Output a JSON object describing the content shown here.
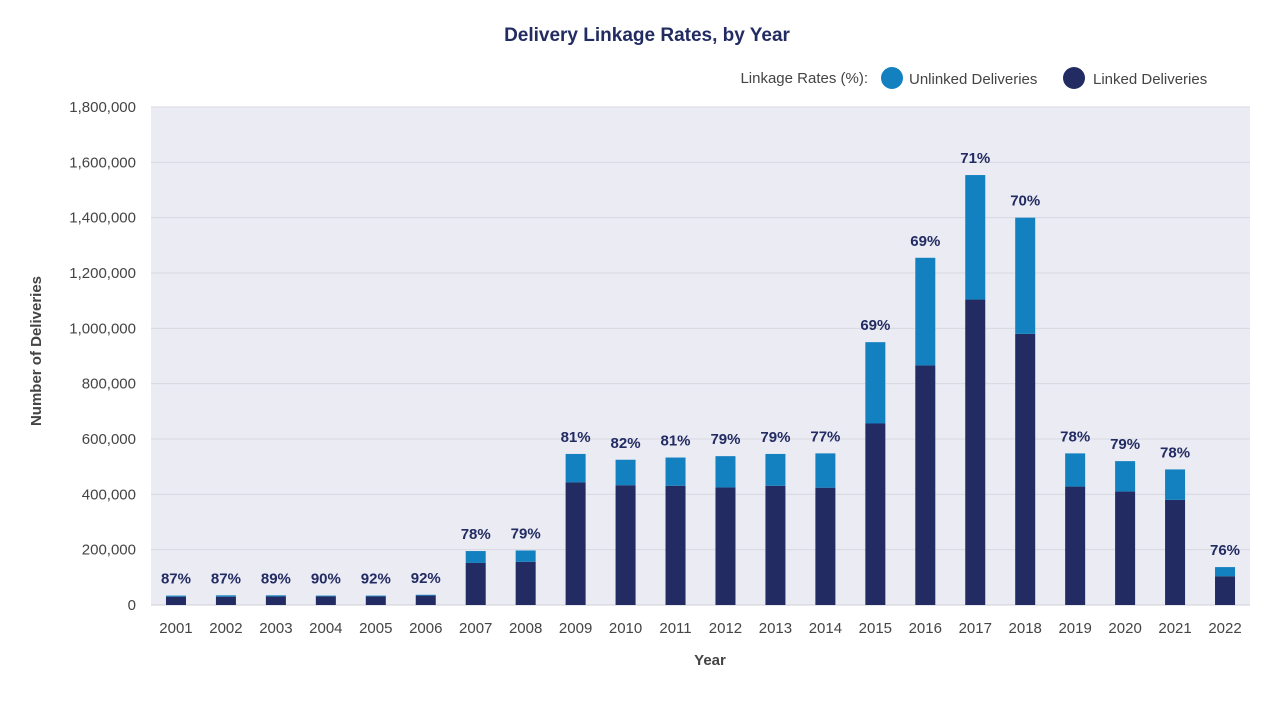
{
  "chart_data": {
    "type": "bar",
    "stacked": true,
    "title": "Delivery Linkage Rates, by Year",
    "xlabel": "Year",
    "ylabel": "Number of Deliveries",
    "legend_title": "Linkage Rates (%):",
    "legend_position": "top-right",
    "ylim": [
      0,
      1800000
    ],
    "yticks": [
      0,
      200000,
      400000,
      600000,
      800000,
      1000000,
      1200000,
      1400000,
      1600000,
      1800000
    ],
    "ytick_labels": [
      "0",
      "200,000",
      "400,000",
      "600,000",
      "800,000",
      "1,000,000",
      "1,200,000",
      "1,400,000",
      "1,600,000",
      "1,800,000"
    ],
    "grid": true,
    "categories": [
      "2001",
      "2002",
      "2003",
      "2004",
      "2005",
      "2006",
      "2007",
      "2008",
      "2009",
      "2010",
      "2011",
      "2012",
      "2013",
      "2014",
      "2015",
      "2016",
      "2017",
      "2018",
      "2019",
      "2020",
      "2021",
      "2022"
    ],
    "series": [
      {
        "name": "Linked Deliveries",
        "color": "#222b62",
        "values": [
          30000,
          30000,
          31000,
          31000,
          31000,
          34000,
          152000,
          156000,
          443000,
          433000,
          431000,
          425000,
          431000,
          424000,
          656000,
          866000,
          1104000,
          980000,
          428000,
          410000,
          380000,
          104000
        ]
      },
      {
        "name": "Unlinked Deliveries",
        "color": "#1380bf",
        "values": [
          4000,
          5000,
          4000,
          3000,
          3000,
          3000,
          43000,
          41000,
          103000,
          92000,
          102000,
          113000,
          115000,
          124000,
          294000,
          389000,
          450000,
          420000,
          120000,
          110000,
          110000,
          33000
        ]
      }
    ],
    "data_labels": [
      "87%",
      "87%",
      "89%",
      "90%",
      "92%",
      "92%",
      "78%",
      "79%",
      "81%",
      "82%",
      "81%",
      "79%",
      "79%",
      "77%",
      "69%",
      "69%",
      "71%",
      "70%",
      "78%",
      "79%",
      "78%",
      "76%"
    ],
    "colors": {
      "title": "#222b62",
      "plot_bg": "#ebebf4",
      "gridline": "#d8d8e0",
      "label": "#222b62"
    }
  }
}
